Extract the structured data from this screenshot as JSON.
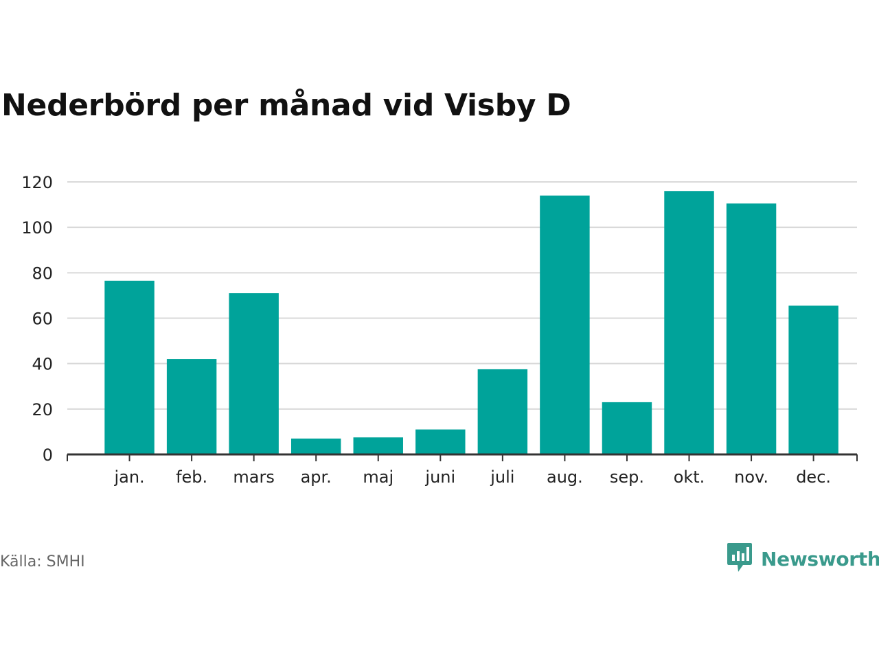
{
  "title": "Nederbörd per månad vid Visby D",
  "source": "Källa: SMHI",
  "brand": {
    "name": "Newsworthy",
    "icon": "newsworthy-chart-bubble-icon",
    "color": "#3a9a8c"
  },
  "colors": {
    "bar": "#00a39a",
    "grid": "#d9d9d9",
    "axis": "#333333"
  },
  "chart_data": {
    "type": "bar",
    "categories": [
      "jan.",
      "feb.",
      "mars",
      "apr.",
      "maj",
      "juni",
      "juli",
      "aug.",
      "sep.",
      "okt.",
      "nov.",
      "dec."
    ],
    "values": [
      76.5,
      42,
      71,
      7,
      7.5,
      11,
      37.5,
      114,
      23,
      116,
      110.5,
      65.5
    ],
    "ylim": [
      0,
      120
    ],
    "yticks": [
      0,
      20,
      40,
      60,
      80,
      100,
      120
    ],
    "grid": true,
    "xlabel": "",
    "ylabel": ""
  }
}
